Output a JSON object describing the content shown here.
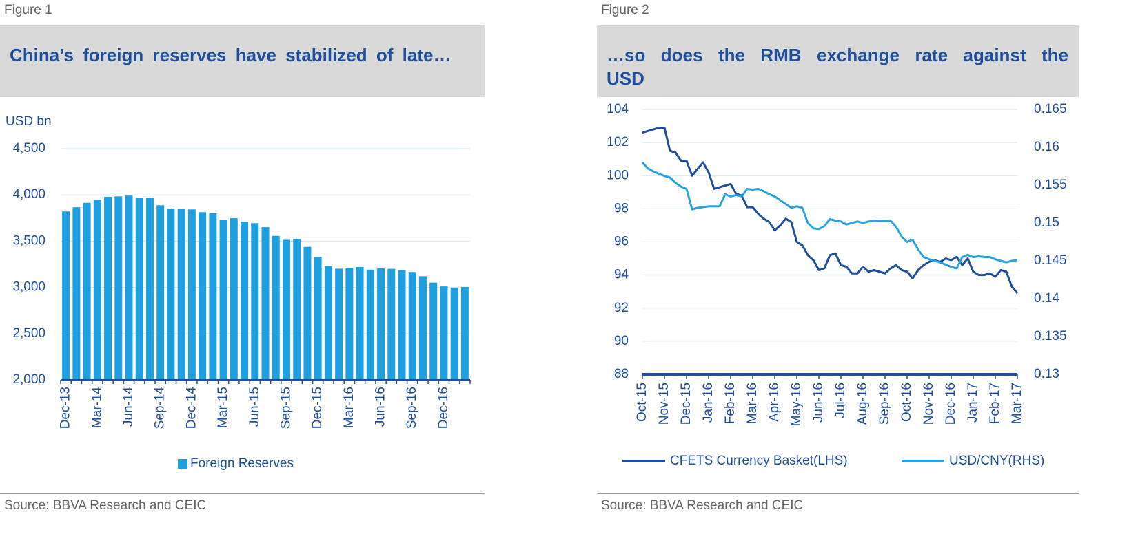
{
  "chart_data": [
    {
      "type": "bar",
      "figure_label": "Figure 1",
      "title": "China’s foreign reserves have stabilized of late…",
      "ylabel": "USD bn",
      "source": "Source: BBVA Research and CEIC",
      "categories": [
        "Dec-13",
        null,
        null,
        "Mar-14",
        null,
        null,
        "Jun-14",
        null,
        null,
        "Sep-14",
        null,
        null,
        "Dec-14",
        null,
        null,
        "Mar-15",
        null,
        null,
        "Jun-15",
        null,
        null,
        "Sep-15",
        null,
        null,
        "Dec-15",
        null,
        null,
        "Mar-16",
        null,
        null,
        "Jun-16",
        null,
        null,
        "Sep-16",
        null,
        null,
        "Dec-16",
        null,
        null
      ],
      "series": [
        {
          "name": "Foreign Reserves",
          "color": "#1e9fe0",
          "values": [
            3821,
            3866,
            3914,
            3948,
            3979,
            3984,
            3993,
            3966,
            3969,
            3888,
            3853,
            3847,
            3843,
            3813,
            3802,
            3730,
            3748,
            3711,
            3694,
            3651,
            3557,
            3514,
            3526,
            3438,
            3330,
            3231,
            3202,
            3213,
            3220,
            3192,
            3205,
            3201,
            3185,
            3166,
            3121,
            3052,
            3011,
            2998,
            3005
          ]
        }
      ],
      "ylim": [
        2000,
        4500
      ],
      "yticks": [
        {
          "value": 2000,
          "label": "2,000"
        },
        {
          "value": 2500,
          "label": "2,500"
        },
        {
          "value": 3000,
          "label": "3,000"
        },
        {
          "value": 3500,
          "label": "3,500"
        },
        {
          "value": 4000,
          "label": "4,000"
        },
        {
          "value": 4500,
          "label": "4,500"
        }
      ],
      "grid": true,
      "legend": "bottom"
    },
    {
      "type": "line",
      "figure_label": "Figure 2",
      "title": "…so does the RMB exchange rate against the USD",
      "source": "Source: BBVA Research and CEIC",
      "x": [
        0,
        0.25,
        0.5,
        0.75,
        1,
        1.25,
        1.5,
        1.75,
        2,
        2.25,
        2.5,
        2.75,
        3,
        3.25,
        3.5,
        3.75,
        4,
        4.25,
        4.5,
        4.75,
        5,
        5.25,
        5.5,
        5.75,
        6,
        6.25,
        6.5,
        6.75,
        7,
        7.25,
        7.5,
        7.75,
        8,
        8.25,
        8.5,
        8.75,
        9,
        9.25,
        9.5,
        9.75,
        10,
        10.25,
        10.5,
        10.75,
        11,
        11.25,
        11.5,
        11.75,
        12,
        12.25,
        12.5,
        12.75,
        13,
        13.25,
        13.5,
        13.75,
        14,
        14.25,
        14.5,
        14.75,
        15,
        15.25,
        15.5,
        15.75,
        16,
        16.25,
        16.5,
        16.75,
        17
      ],
      "xlim": [
        0,
        17
      ],
      "xticks": [
        {
          "value": 0,
          "label": "Oct-15"
        },
        {
          "value": 1,
          "label": "Nov-15"
        },
        {
          "value": 2,
          "label": "Dec-15"
        },
        {
          "value": 3,
          "label": "Jan-16"
        },
        {
          "value": 4,
          "label": "Feb-16"
        },
        {
          "value": 5,
          "label": "Mar-16"
        },
        {
          "value": 6,
          "label": "Apr-16"
        },
        {
          "value": 7,
          "label": "May-16"
        },
        {
          "value": 8,
          "label": "Jun-16"
        },
        {
          "value": 9,
          "label": "Jul-16"
        },
        {
          "value": 10,
          "label": "Aug-16"
        },
        {
          "value": 11,
          "label": "Sep-16"
        },
        {
          "value": 12,
          "label": "Oct-16"
        },
        {
          "value": 13,
          "label": "Nov-16"
        },
        {
          "value": 14,
          "label": "Dec-16"
        },
        {
          "value": 15,
          "label": "Jan-17"
        },
        {
          "value": 16,
          "label": "Feb-17"
        },
        {
          "value": 17,
          "label": "Mar-17"
        }
      ],
      "series": [
        {
          "name": "CFETS Currency Basket(LHS)",
          "color": "#1f4e9c",
          "axis": "y",
          "values": [
            102.6,
            102.7,
            102.8,
            102.9,
            102.9,
            101.5,
            101.4,
            100.9,
            100.9,
            100.0,
            100.4,
            100.8,
            100.2,
            99.2,
            99.3,
            99.4,
            99.5,
            98.9,
            98.8,
            98.1,
            98.1,
            97.7,
            97.4,
            97.2,
            96.7,
            97.0,
            97.4,
            97.2,
            96.0,
            95.8,
            95.2,
            94.9,
            94.3,
            94.4,
            95.2,
            95.3,
            94.6,
            94.5,
            94.1,
            94.1,
            94.5,
            94.2,
            94.3,
            94.2,
            94.1,
            94.4,
            94.6,
            94.3,
            94.2,
            93.8,
            94.3,
            94.6,
            94.8,
            94.9,
            94.8,
            95.0,
            94.9,
            95.1,
            94.6,
            95.0,
            94.2,
            94.0,
            94.0,
            94.1,
            93.9,
            94.3,
            94.2,
            93.3,
            92.9
          ]
        },
        {
          "name": "USD/CNY(RHS)",
          "color": "#29a3e0",
          "axis": "y2",
          "values": [
            0.158,
            0.1572,
            0.1568,
            0.1565,
            0.1562,
            0.156,
            0.1553,
            0.1548,
            0.1545,
            0.1518,
            0.152,
            0.1521,
            0.1522,
            0.1522,
            0.1522,
            0.1538,
            0.1535,
            0.1537,
            0.1535,
            0.1545,
            0.1544,
            0.1545,
            0.1542,
            0.1538,
            0.1535,
            0.153,
            0.1525,
            0.152,
            0.1522,
            0.152,
            0.15,
            0.1493,
            0.1492,
            0.1496,
            0.1505,
            0.1503,
            0.1502,
            0.1498,
            0.15,
            0.1502,
            0.15,
            0.1502,
            0.1503,
            0.1503,
            0.1503,
            0.1503,
            0.1495,
            0.1482,
            0.1475,
            0.1478,
            0.1465,
            0.1455,
            0.1452,
            0.145,
            0.1448,
            0.1445,
            0.1442,
            0.144,
            0.1455,
            0.1458,
            0.1455,
            0.1456,
            0.1455,
            0.1455,
            0.1452,
            0.145,
            0.1448,
            0.145,
            0.1451
          ]
        }
      ],
      "ylim": [
        88,
        104
      ],
      "yticks": [
        88,
        90,
        92,
        94,
        96,
        98,
        100,
        102,
        104
      ],
      "y2lim": [
        0.13,
        0.165
      ],
      "y2ticks": [
        0.13,
        0.135,
        0.14,
        0.145,
        0.15,
        0.155,
        0.16,
        0.165
      ],
      "grid": true,
      "legend": "bottom"
    }
  ]
}
